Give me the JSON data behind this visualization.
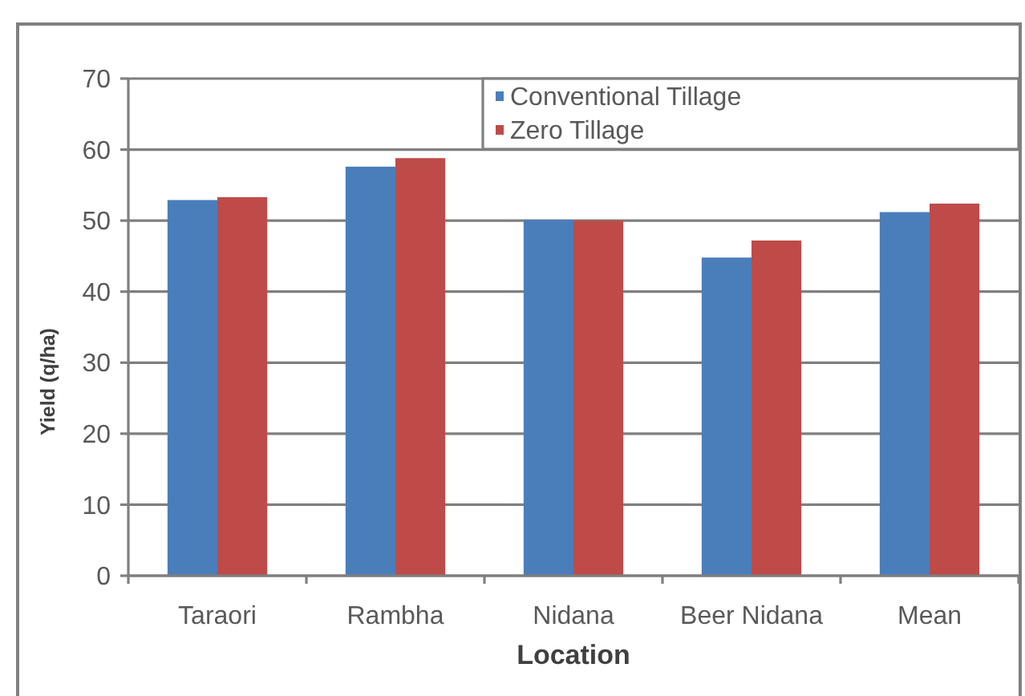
{
  "chart_data": {
    "type": "bar",
    "xlabel": "Location",
    "ylabel": "Yield (q/ha)",
    "categories": [
      "Taraori",
      "Rambha",
      "Nidana",
      "Beer Nidana",
      "Mean"
    ],
    "series": [
      {
        "name": "Conventional Tillage",
        "color": "#4a7ebb",
        "values": [
          52.9,
          57.6,
          50.1,
          44.8,
          51.2
        ]
      },
      {
        "name": "Zero Tillage",
        "color": "#be4b48",
        "values": [
          53.3,
          58.8,
          50.0,
          47.2,
          52.4
        ]
      }
    ],
    "ylim": [
      0,
      70
    ],
    "yticks": [
      0,
      10,
      20,
      30,
      40,
      50,
      60,
      70
    ],
    "grid": "y",
    "legend": "top right"
  }
}
